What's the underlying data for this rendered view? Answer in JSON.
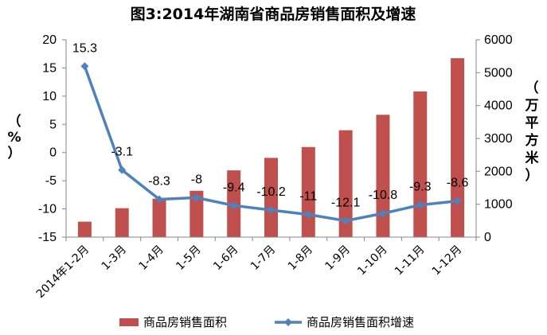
{
  "chart_data": {
    "type": "bar",
    "title": "图3:2014年湖南省商品房销售面积及增速",
    "categories": [
      "2014年1-2月",
      "1-3月",
      "1-4月",
      "1-5月",
      "1-6月",
      "1-7月",
      "1-8月",
      "1-9月",
      "1-10月",
      "1-11月",
      "1-12月"
    ],
    "series": [
      {
        "name": "商品房销售面积",
        "axis": "right",
        "type": "bar",
        "color": "#C0504D",
        "values": [
          470,
          880,
          1170,
          1410,
          2030,
          2410,
          2740,
          3250,
          3720,
          4430,
          5440
        ]
      },
      {
        "name": "商品房销售面积增速",
        "axis": "left",
        "type": "line",
        "color": "#4F81BD",
        "values": [
          15.3,
          -3.1,
          -8.3,
          -8,
          -9.4,
          -10.2,
          -11,
          -12.1,
          -10.8,
          -9.3,
          -8.6
        ],
        "labels": [
          "15.3",
          "-3.1",
          "-8.3",
          "-8",
          "-9.4",
          "-10.2",
          "-11",
          "-12.1",
          "-10.8",
          "-9.3",
          "-8.6"
        ]
      }
    ],
    "y_left": {
      "label": "（%）",
      "min": -15,
      "max": 20,
      "step": 5,
      "ticks": [
        "20",
        "15",
        "10",
        "5",
        "0",
        "-5",
        "-10",
        "-15"
      ]
    },
    "y_right": {
      "label": "（万平方米）",
      "min": 0,
      "max": 6000,
      "step": 1000,
      "ticks": [
        "6000",
        "5000",
        "4000",
        "3000",
        "2000",
        "1000",
        "0"
      ]
    },
    "grid": false,
    "legend_position": "bottom"
  }
}
